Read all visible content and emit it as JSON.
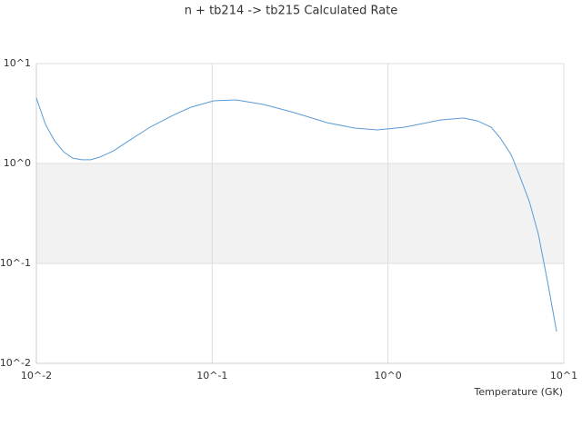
{
  "chart_data": {
    "type": "line",
    "title": "n + tb214 -> tb215 Calculated Rate",
    "x_label": "Temperature (GK)",
    "x": [
      0.01,
      0.01127,
      0.01268,
      0.01429,
      0.0161,
      0.01815,
      0.0204,
      0.023,
      0.0275,
      0.0329,
      0.0443,
      0.0597,
      0.0757,
      0.102,
      0.137,
      0.196,
      0.281,
      0.452,
      0.647,
      0.871,
      1.245,
      2.0,
      2.7,
      3.23,
      3.86,
      4.35,
      5.01,
      5.52,
      6.37,
      7.17,
      8.08,
      9.1
    ],
    "series": [
      {
        "color": "#5b9bd5",
        "values": [
          4.52,
          2.46,
          1.69,
          1.31,
          1.13,
          1.09,
          1.09,
          1.16,
          1.34,
          1.65,
          2.31,
          3.03,
          3.66,
          4.24,
          4.33,
          3.9,
          3.3,
          2.56,
          2.26,
          2.17,
          2.31,
          2.73,
          2.85,
          2.67,
          2.31,
          1.8,
          1.23,
          0.81,
          0.415,
          0.195,
          0.0658,
          0.0208
        ]
      }
    ],
    "xlim": [
      0.01,
      10
    ],
    "ylim": [
      0.01,
      10
    ],
    "log_x": true,
    "log_y": true,
    "grid": true,
    "band_color": "#f2f2f2",
    "xticks": [
      {
        "value": 0.01,
        "label": "10^-2"
      },
      {
        "value": 0.1,
        "label": "10^-1"
      },
      {
        "value": 1,
        "label": "10^0"
      },
      {
        "value": 10,
        "label": "10^1"
      }
    ],
    "yticks": [
      {
        "value": 0.01,
        "label": "10^-2"
      },
      {
        "value": 0.1,
        "label": "10^-1"
      },
      {
        "value": 1,
        "label": "10^0"
      },
      {
        "value": 10,
        "label": "10^1"
      }
    ]
  }
}
